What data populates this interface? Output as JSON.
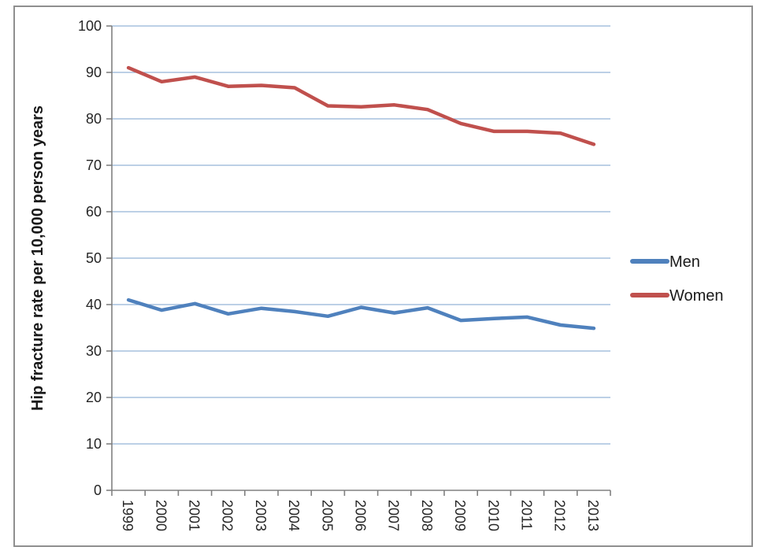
{
  "figure": {
    "background": "#ffffff",
    "frame_border_color": "#8f8f8f"
  },
  "chart_data": {
    "type": "line",
    "title": "",
    "xlabel": "",
    "ylabel": "Hip fracture rate per 10,000 person years",
    "categories": [
      "1999",
      "2000",
      "2001",
      "2002",
      "2003",
      "2004",
      "2005",
      "2006",
      "2007",
      "2008",
      "2009",
      "2010",
      "2011",
      "2012",
      "2013"
    ],
    "series": [
      {
        "name": "Men",
        "color": "#4F81BD",
        "values": [
          41.0,
          38.8,
          40.2,
          38.0,
          39.2,
          38.5,
          37.5,
          39.4,
          38.2,
          39.3,
          36.6,
          37.0,
          37.3,
          35.6,
          34.9
        ]
      },
      {
        "name": "Women",
        "color": "#C0504D",
        "values": [
          91.0,
          88.0,
          89.0,
          87.0,
          87.2,
          86.7,
          82.8,
          82.6,
          83.0,
          82.0,
          79.0,
          77.3,
          77.3,
          76.9,
          74.5
        ]
      }
    ],
    "ylim": [
      0,
      100
    ],
    "y_ticks": [
      0,
      10,
      20,
      30,
      40,
      50,
      60,
      70,
      80,
      90,
      100
    ],
    "grid": true,
    "legend_position": "right",
    "gridline_color": "#95B3D7",
    "axis_color": "#808080",
    "tick_text_color": "#262626"
  }
}
